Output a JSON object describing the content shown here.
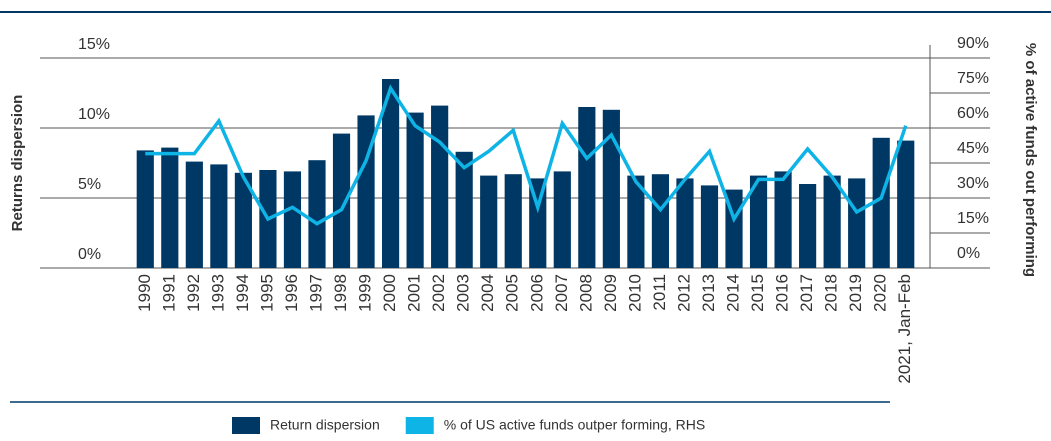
{
  "chart_data": {
    "type": "bar_line",
    "y_label": "Returns dispersion",
    "y2_label": "% of active funds out performing",
    "categories": [
      "1990",
      "1991",
      "1992",
      "1993",
      "1994",
      "1995",
      "1996",
      "1997",
      "1998",
      "1999",
      "2000",
      "2001",
      "2002",
      "2003",
      "2004",
      "2005",
      "2006",
      "2007",
      "2008",
      "2009",
      "2010",
      "2011",
      "2012",
      "2013",
      "2014",
      "2015",
      "2016",
      "2017",
      "2018",
      "2019",
      "2020",
      "2021, Jan-Feb"
    ],
    "series": [
      {
        "name": "Return dispersion",
        "color": "#003865",
        "type": "bar",
        "values": [
          8.4,
          8.6,
          7.6,
          7.4,
          6.8,
          7.0,
          6.9,
          7.7,
          9.6,
          10.9,
          13.5,
          11.1,
          11.6,
          8.3,
          6.6,
          6.7,
          6.4,
          6.9,
          11.5,
          11.3,
          6.6,
          6.7,
          6.4,
          5.9,
          5.6,
          6.6,
          6.9,
          6.0,
          6.6,
          6.4,
          9.3,
          9.1
        ]
      },
      {
        "name": "% of US active funds outper forming, RHS",
        "color": "#0fb4e6",
        "type": "line",
        "axis": "y2",
        "values": [
          49,
          49,
          49,
          63,
          39,
          21,
          26,
          19,
          25,
          46,
          77,
          61,
          54,
          43,
          50,
          59,
          26,
          62,
          47,
          57,
          37,
          25,
          38,
          50,
          21,
          38,
          38,
          51,
          39,
          24,
          30,
          61
        ]
      }
    ],
    "ylim": [
      0,
      15
    ],
    "yticks": [
      {
        "value": 0,
        "label": "0%"
      },
      {
        "value": 5,
        "label": "5%"
      },
      {
        "value": 10,
        "label": "10%"
      },
      {
        "value": 15,
        "label": "15%"
      }
    ],
    "y2lim": [
      0,
      90
    ],
    "y2ticks": [
      {
        "value": 0,
        "label": "0%"
      },
      {
        "value": 15,
        "label": "15%"
      },
      {
        "value": 30,
        "label": "30%"
      },
      {
        "value": 45,
        "label": "45%"
      },
      {
        "value": 60,
        "label": "60%"
      },
      {
        "value": 75,
        "label": "75%"
      },
      {
        "value": 90,
        "label": "90%"
      }
    ],
    "grid": true
  }
}
